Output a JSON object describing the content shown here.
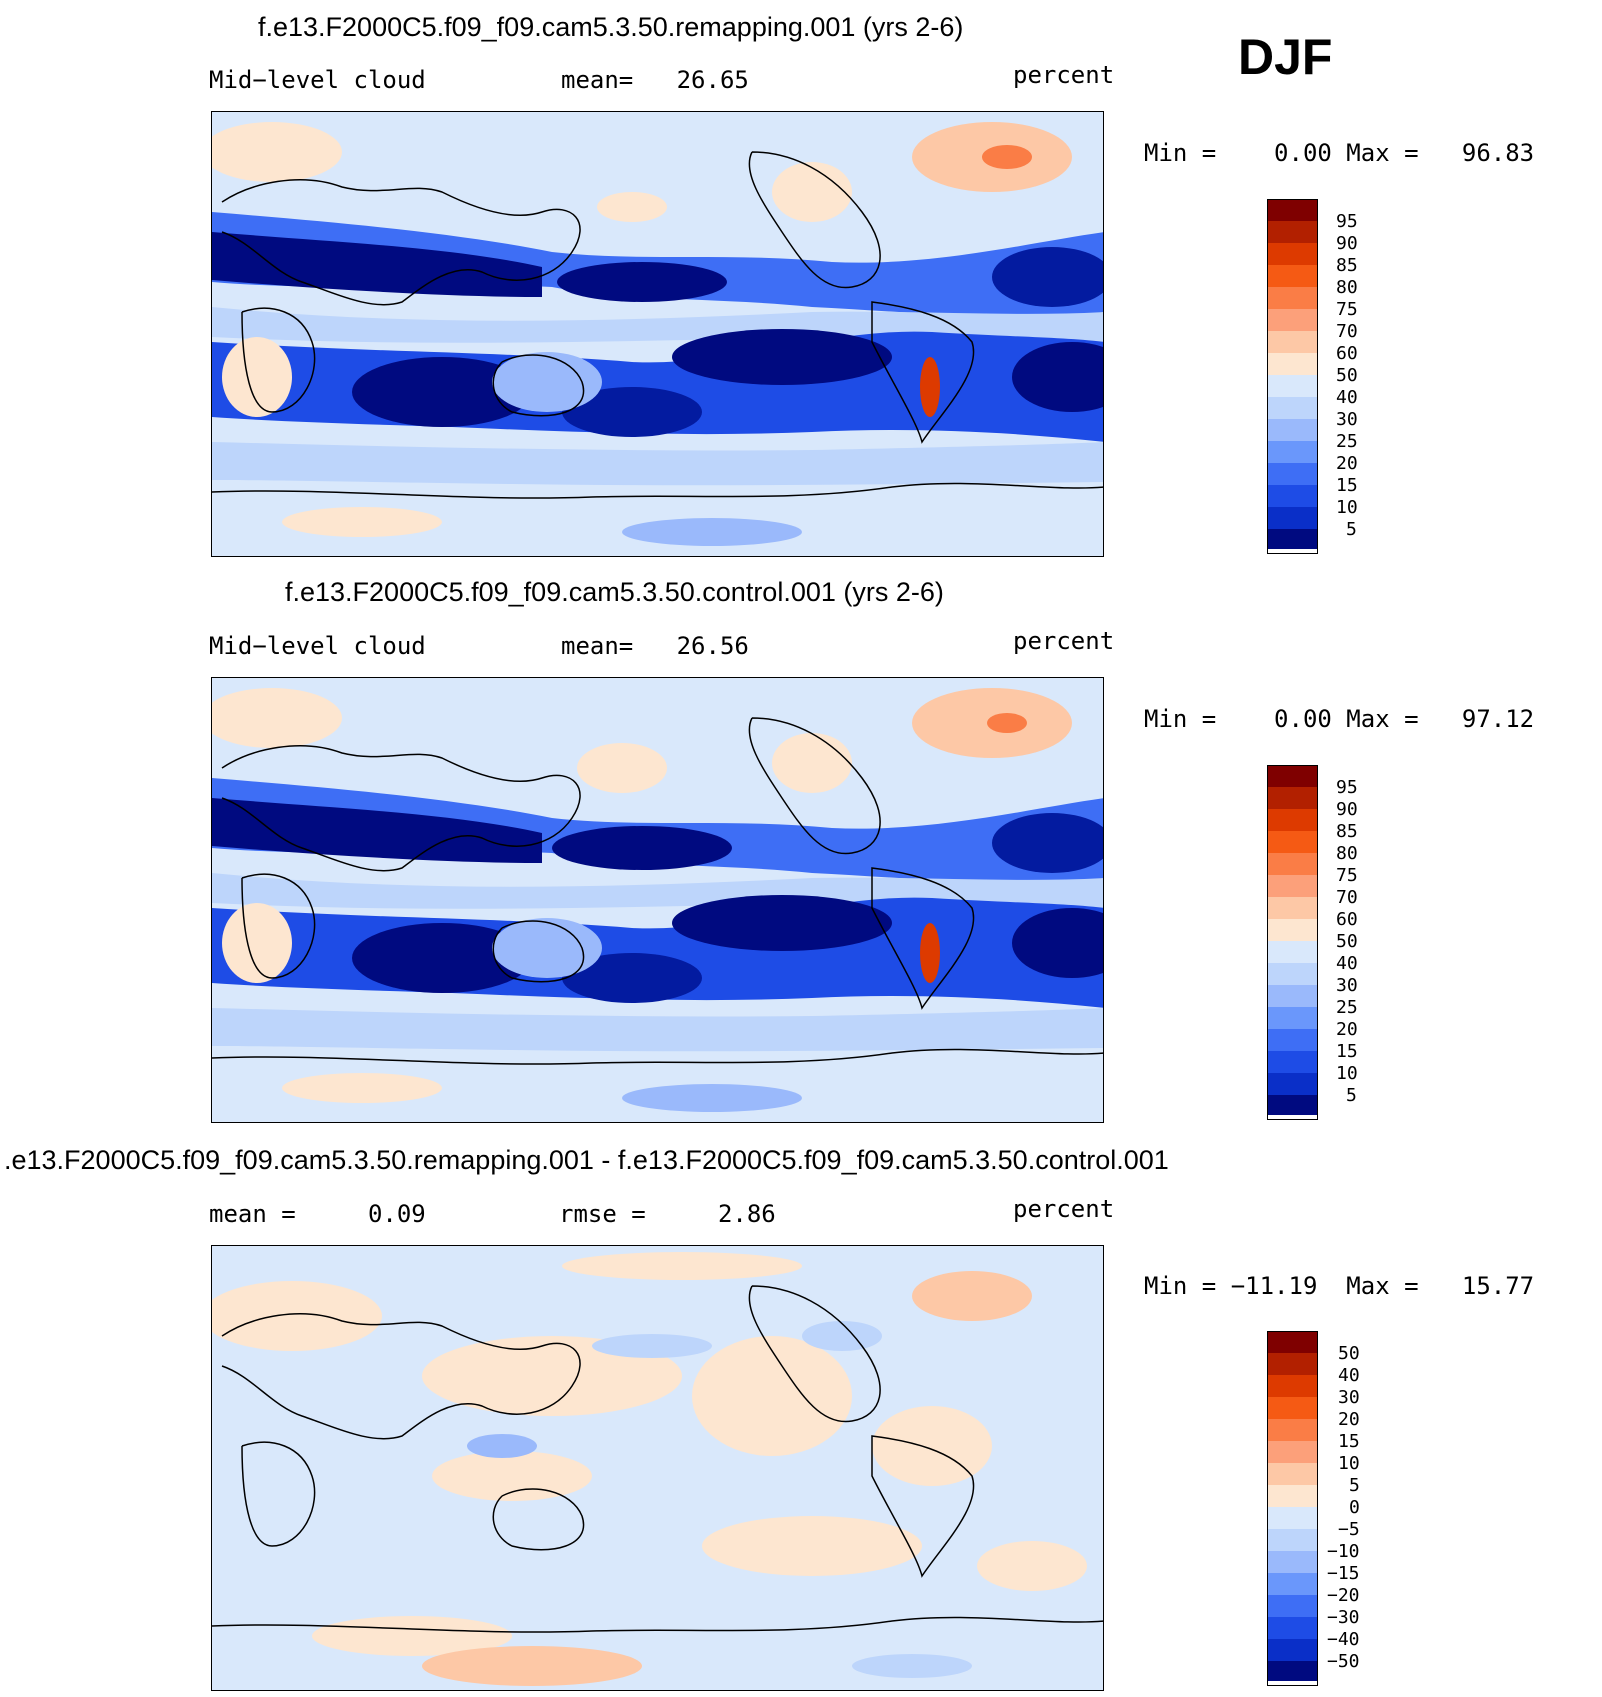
{
  "season": "DJF",
  "panels": [
    {
      "title": "f.e13.F2000C5.f09_f09.cam5.3.50.remapping.001 (yrs 2-6)",
      "left_label": "Mid−level cloud",
      "mid_label": "mean=   26.65",
      "right_label": "percent",
      "minmax": "Min =    0.00 Max =   96.83",
      "colorbar_labels": [
        "95",
        "90",
        "85",
        "80",
        "75",
        "70",
        "60",
        "50",
        "40",
        "30",
        "25",
        "20",
        "15",
        "10",
        "5"
      ]
    },
    {
      "title": "f.e13.F2000C5.f09_f09.cam5.3.50.control.001 (yrs 2-6)",
      "left_label": "Mid−level cloud",
      "mid_label": "mean=   26.56",
      "right_label": "percent",
      "minmax": "Min =    0.00 Max =   97.12",
      "colorbar_labels": [
        "95",
        "90",
        "85",
        "80",
        "75",
        "70",
        "60",
        "50",
        "40",
        "30",
        "25",
        "20",
        "15",
        "10",
        "5"
      ]
    },
    {
      "title": ".e13.F2000C5.f09_f09.cam5.3.50.remapping.001 - f.e13.F2000C5.f09_f09.cam5.3.50.control.001",
      "left_label": "mean =     0.09",
      "mid_label": "rmse =     2.86",
      "right_label": "percent",
      "minmax": "Min = −11.19  Max =   15.77",
      "colorbar_labels": [
        "50",
        "40",
        "30",
        "20",
        "15",
        "10",
        "5",
        "0",
        "−5",
        "−10",
        "−15",
        "−20",
        "−30",
        "−40",
        "−50"
      ]
    }
  ],
  "colors": {
    "abs_scale": [
      "#7f0000",
      "#b22000",
      "#dd3a00",
      "#f55a14",
      "#fa7d46",
      "#fca07a",
      "#fdc8a6",
      "#fde6d0",
      "#d9e8fb",
      "#bdd5fb",
      "#9ab9fb",
      "#6a97fb",
      "#3e6ef5",
      "#1e4ce6",
      "#0a2fc8",
      "#031ba0",
      "#000a80"
    ],
    "diff_scale": [
      "#7f0000",
      "#b22000",
      "#dd3a00",
      "#f55a14",
      "#fa7d46",
      "#fca07a",
      "#fdc8a6",
      "#fde6d0",
      "#d9e8fb",
      "#bdd5fb",
      "#9ab9fb",
      "#6a97fb",
      "#3e6ef5",
      "#1e4ce6",
      "#0a2fc8",
      "#031ba0",
      "#000a80"
    ]
  }
}
